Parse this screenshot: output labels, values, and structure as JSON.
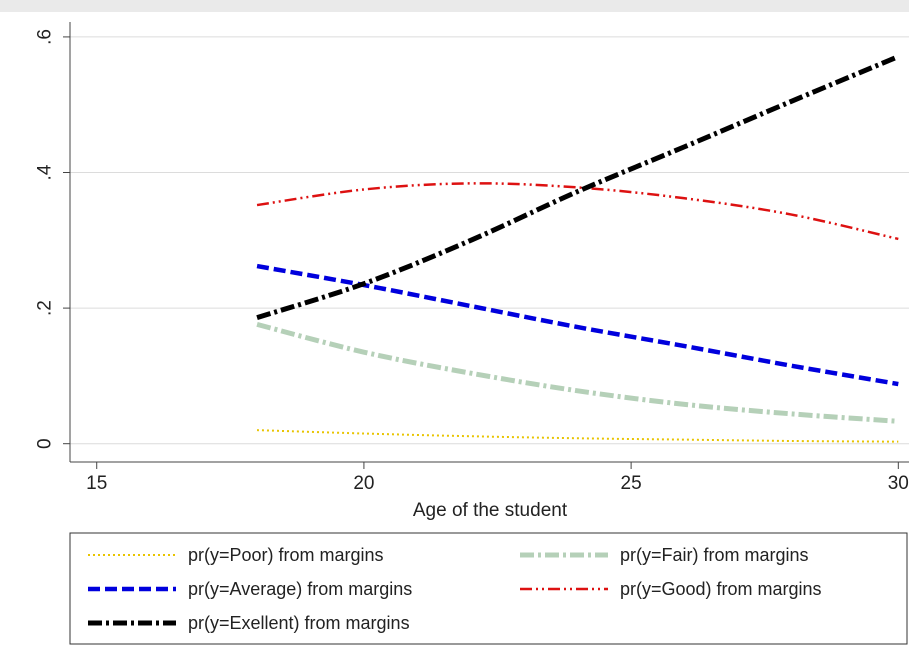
{
  "chart_data": {
    "type": "line",
    "title": "",
    "xlabel": "Age of the student",
    "ylabel": "",
    "xlim": [
      14.5,
      30.2
    ],
    "ylim": [
      -0.027,
      0.622
    ],
    "x_ticks": [
      15,
      20,
      25,
      30
    ],
    "x_tick_labels": [
      "15",
      "20",
      "25",
      "30"
    ],
    "y_ticks": [
      0,
      0.2,
      0.4,
      0.6
    ],
    "y_tick_labels": [
      "0",
      ".2",
      ".4",
      ".6"
    ],
    "grid": "horizontal",
    "legend_position": "bottom",
    "x": [
      18,
      20,
      22,
      24,
      26,
      28,
      30
    ],
    "series": [
      {
        "name": "pr(y=Poor) from margins",
        "color": "#e8c400",
        "style": "dotted",
        "values": [
          0.02,
          0.015,
          0.011,
          0.008,
          0.006,
          0.004,
          0.003
        ]
      },
      {
        "name": "pr(y=Fair) from margins",
        "color": "#b5d0b8",
        "style": "longdash-dot",
        "values": [
          0.176,
          0.135,
          0.104,
          0.078,
          0.058,
          0.044,
          0.033
        ]
      },
      {
        "name": "pr(y=Average) from margins",
        "color": "#0000dd",
        "style": "dash",
        "values": [
          0.262,
          0.234,
          0.203,
          0.172,
          0.144,
          0.115,
          0.088
        ]
      },
      {
        "name": "pr(y=Good) from margins",
        "color": "#dd1111",
        "style": "dash-dot-dot",
        "values": [
          0.352,
          0.375,
          0.384,
          0.378,
          0.362,
          0.338,
          0.302
        ]
      },
      {
        "name": "pr(y=Exellent) from margins",
        "color": "#000000",
        "style": "longdash-dot",
        "values": [
          0.186,
          0.236,
          0.3,
          0.372,
          0.438,
          0.505,
          0.571
        ]
      }
    ]
  }
}
